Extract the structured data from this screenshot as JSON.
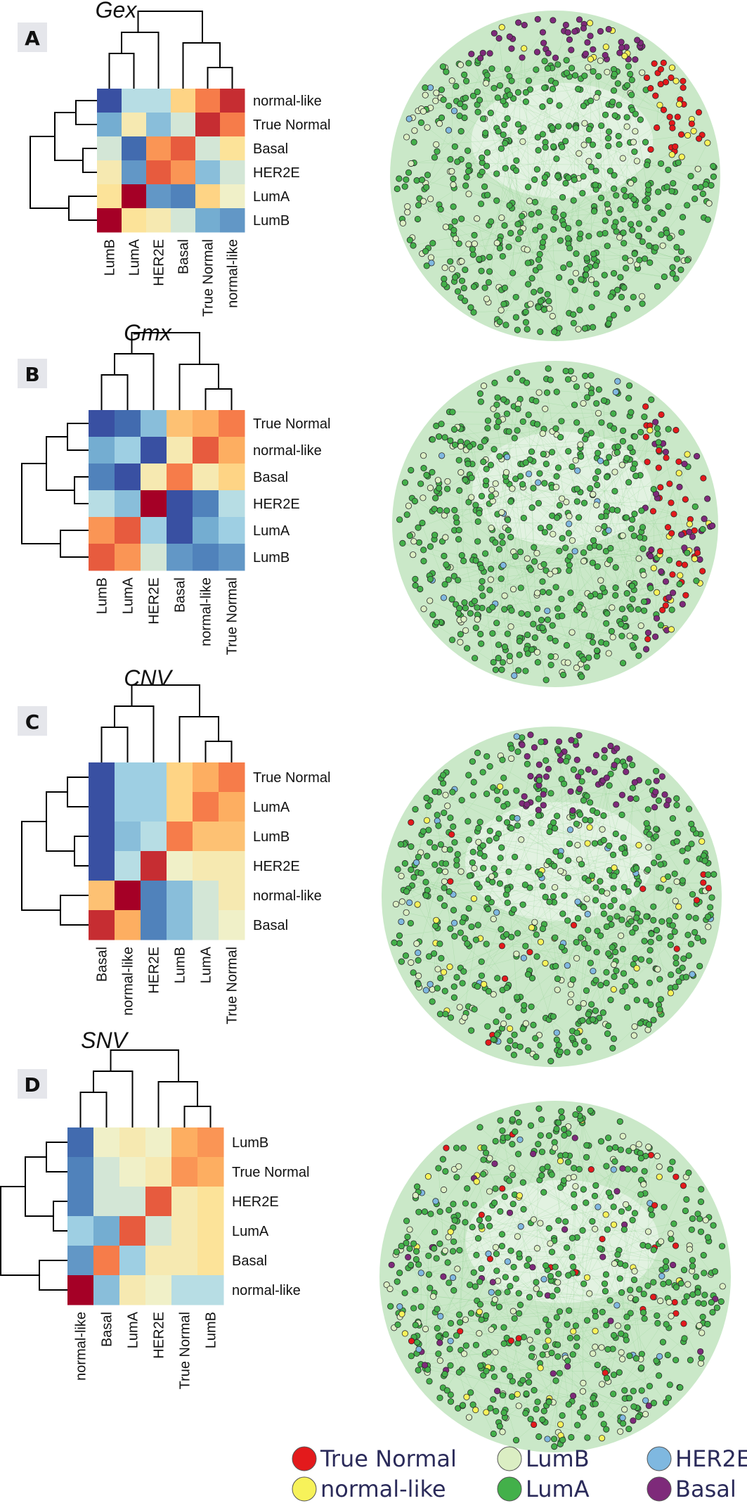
{
  "panels": [
    {
      "letter": "A",
      "title": "Gex",
      "row_labels": [
        "normal-like",
        "True Normal",
        "Basal",
        "HER2E",
        "LumA",
        "LumB"
      ],
      "col_labels": [
        "LumB",
        "LumA",
        "HER2E",
        "Basal",
        "True Normal",
        "normal-like"
      ],
      "matrix": [
        [
          0.05,
          0.4,
          0.4,
          0.65,
          0.85,
          0.95
        ],
        [
          0.25,
          0.55,
          0.3,
          0.45,
          0.95,
          0.85
        ],
        [
          0.45,
          0.1,
          0.8,
          0.9,
          0.45,
          0.6
        ],
        [
          0.55,
          0.2,
          0.9,
          0.8,
          0.3,
          0.45
        ],
        [
          0.6,
          1.0,
          0.2,
          0.15,
          0.65,
          0.5
        ],
        [
          1.0,
          0.6,
          0.55,
          0.45,
          0.25,
          0.2
        ]
      ],
      "network": {
        "seed": 11,
        "dominant": "Basal-top, True Normal-right",
        "points": 700
      }
    },
    {
      "letter": "B",
      "title": "Gmx",
      "row_labels": [
        "True Normal",
        "normal-like",
        "Basal",
        "HER2E",
        "LumA",
        "LumB"
      ],
      "col_labels": [
        "LumB",
        "LumA",
        "HER2E",
        "Basal",
        "normal-like",
        "True Normal"
      ],
      "matrix": [
        [
          0.05,
          0.1,
          0.3,
          0.7,
          0.75,
          0.85
        ],
        [
          0.25,
          0.35,
          0.05,
          0.55,
          0.9,
          0.75
        ],
        [
          0.15,
          0.05,
          0.55,
          0.85,
          0.55,
          0.65
        ],
        [
          0.4,
          0.3,
          1.0,
          0.05,
          0.15,
          0.4
        ],
        [
          0.8,
          0.9,
          0.35,
          0.05,
          0.25,
          0.35
        ],
        [
          0.9,
          0.8,
          0.45,
          0.2,
          0.15,
          0.2
        ]
      ],
      "network": {
        "seed": 23,
        "dominant": "Basal/True Normal-right",
        "points": 700
      }
    },
    {
      "letter": "C",
      "title": "CNV",
      "row_labels": [
        "True Normal",
        "LumA",
        "LumB",
        "HER2E",
        "normal-like",
        "Basal"
      ],
      "col_labels": [
        "Basal",
        "normal-like",
        "HER2E",
        "LumB",
        "LumA",
        "True Normal"
      ],
      "matrix": [
        [
          0.05,
          0.35,
          0.35,
          0.65,
          0.75,
          0.85
        ],
        [
          0.05,
          0.35,
          0.35,
          0.65,
          0.85,
          0.75
        ],
        [
          0.05,
          0.3,
          0.4,
          0.85,
          0.7,
          0.7
        ],
        [
          0.05,
          0.4,
          0.95,
          0.5,
          0.55,
          0.55
        ],
        [
          0.7,
          1.0,
          0.15,
          0.3,
          0.45,
          0.55
        ],
        [
          0.95,
          0.75,
          0.15,
          0.3,
          0.45,
          0.5
        ]
      ],
      "network": {
        "seed": 37,
        "dominant": "Basal-top",
        "points": 760
      }
    },
    {
      "letter": "D",
      "title": "SNV",
      "row_labels": [
        "LumB",
        "True Normal",
        "HER2E",
        "LumA",
        "Basal",
        "normal-like"
      ],
      "col_labels": [
        "normal-like",
        "Basal",
        "LumA",
        "HER2E",
        "True Normal",
        "LumB"
      ],
      "matrix": [
        [
          0.1,
          0.5,
          0.55,
          0.5,
          0.75,
          0.8
        ],
        [
          0.15,
          0.45,
          0.5,
          0.55,
          0.8,
          0.75
        ],
        [
          0.15,
          0.45,
          0.45,
          0.9,
          0.55,
          0.6
        ],
        [
          0.35,
          0.25,
          0.9,
          0.45,
          0.55,
          0.6
        ],
        [
          0.2,
          0.85,
          0.35,
          0.55,
          0.55,
          0.6
        ],
        [
          1.0,
          0.3,
          0.55,
          0.5,
          0.4,
          0.4
        ]
      ],
      "network": {
        "seed": 53,
        "dominant": "mixed",
        "points": 760
      }
    }
  ],
  "legend": [
    {
      "label": "True Normal",
      "color": "#e31a1c"
    },
    {
      "label": "LumB",
      "color": "#dbeec3"
    },
    {
      "label": "HER2E",
      "color": "#7fb8e0"
    },
    {
      "label": "normal-like",
      "color": "#f7f25a"
    },
    {
      "label": "LumA",
      "color": "#43b04a"
    },
    {
      "label": "Basal",
      "color": "#7e2a7a"
    }
  ],
  "colors": {
    "tab_bg": "#e5e6eb",
    "tree_line": "#000000",
    "edge_green": "#7fc97f"
  }
}
